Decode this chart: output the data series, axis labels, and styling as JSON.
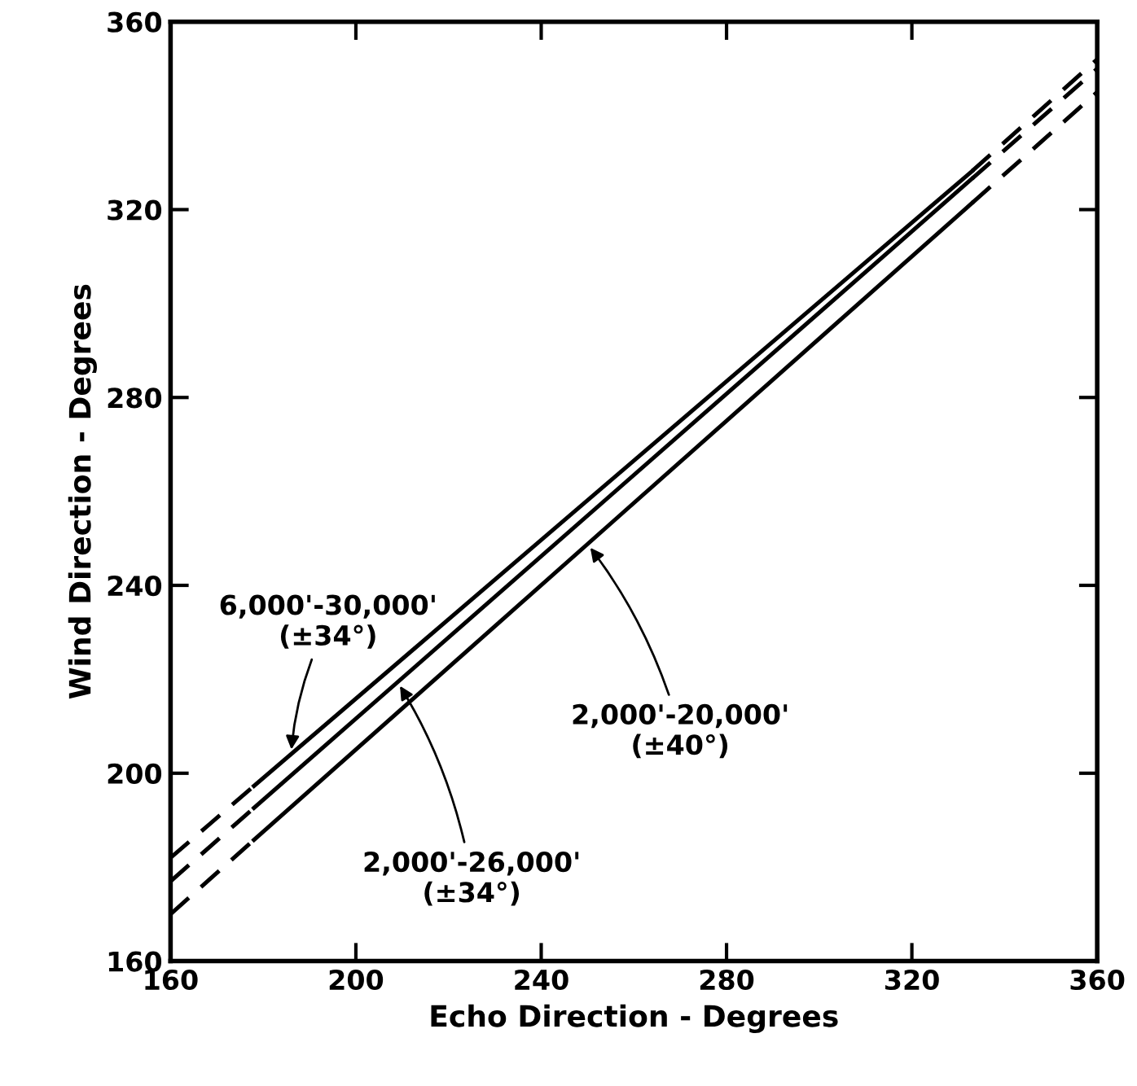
{
  "chart_data": {
    "type": "line",
    "xlabel": "Echo Direction - Degrees",
    "ylabel": "Wind Direction - Degrees",
    "xlim": [
      160,
      360
    ],
    "ylim": [
      160,
      360
    ],
    "xticks": [
      160,
      200,
      240,
      280,
      320,
      360
    ],
    "yticks": [
      160,
      200,
      240,
      280,
      320,
      360
    ],
    "grid": false,
    "marker": "none",
    "series": [
      {
        "color": "#000000",
        "line_style": "dashed",
        "x": [
          160,
          178
        ],
        "values": [
          182,
          197.3
        ]
      },
      {
        "color": "#000000",
        "line_style": "solid",
        "x": [
          178,
          333
        ],
        "values": [
          197.3,
          328.2
        ]
      },
      {
        "color": "#000000",
        "line_style": "dashed",
        "x": [
          333,
          360
        ],
        "values": [
          328.2,
          352
        ]
      },
      {
        "color": "#000000",
        "line_style": "dashed",
        "x": [
          160,
          178
        ],
        "values": [
          177,
          192.6
        ]
      },
      {
        "color": "#000000",
        "line_style": "solid",
        "x": [
          178,
          333
        ],
        "values": [
          192.6,
          326.6
        ]
      },
      {
        "color": "#000000",
        "line_style": "dashed",
        "x": [
          333,
          360
        ],
        "values": [
          326.6,
          350
        ]
      },
      {
        "color": "#000000",
        "line_style": "dashed",
        "x": [
          160,
          178
        ],
        "values": [
          170,
          185.8
        ]
      },
      {
        "color": "#000000",
        "line_style": "solid",
        "x": [
          178,
          333
        ],
        "values": [
          185.8,
          321.4
        ]
      },
      {
        "color": "#000000",
        "line_style": "dashed",
        "x": [
          333,
          360
        ],
        "values": [
          321.4,
          345
        ]
      }
    ],
    "annotations": [
      {
        "text": "6,000'-30,000'\n(±34°)",
        "x": 186,
        "y": 204.1
      },
      {
        "text": "2,000'-26,000'\n(±34°)",
        "x": 209,
        "y": 219.4
      },
      {
        "text": "2,000'-20,000'\n(±40°)",
        "x": 250,
        "y": 248.8
      }
    ]
  }
}
